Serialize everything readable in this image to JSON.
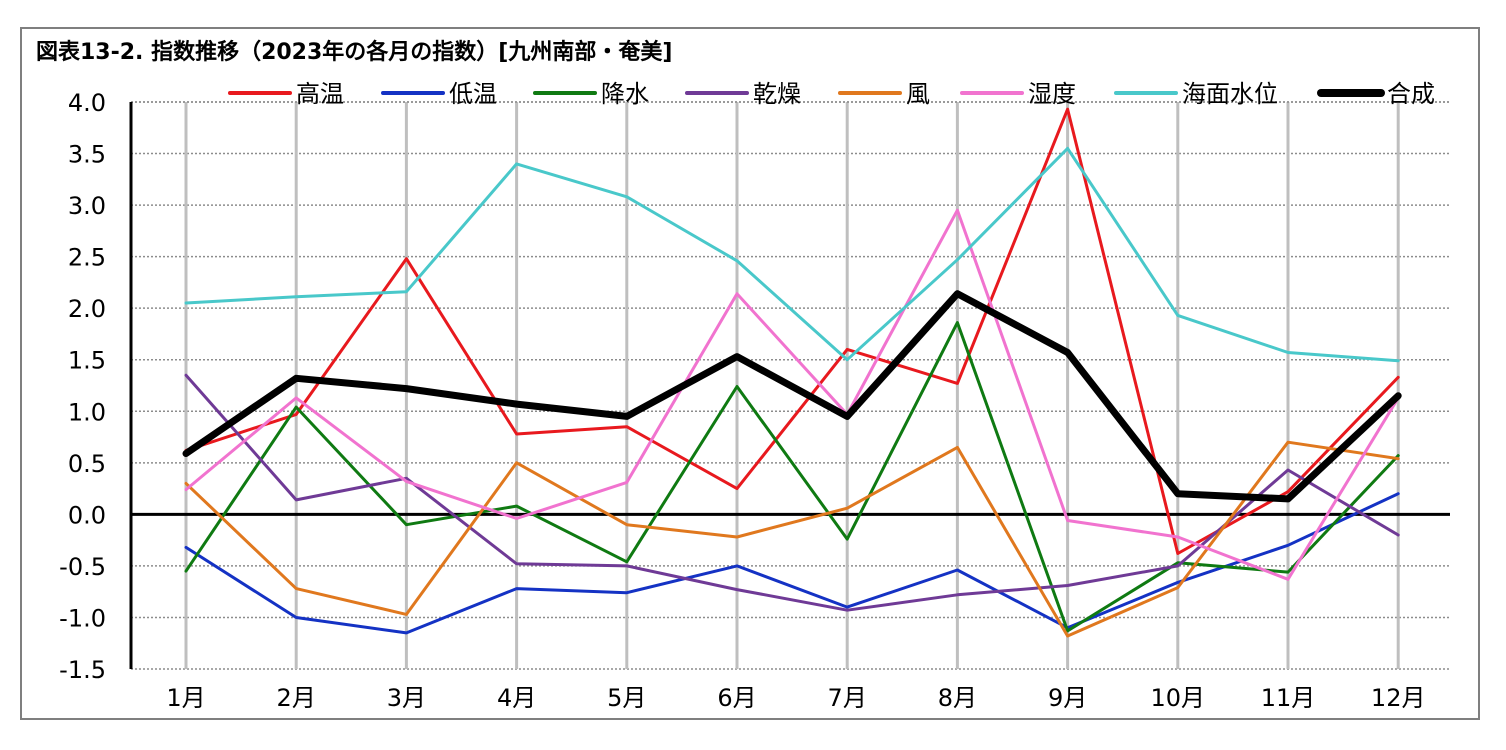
{
  "title": "図表13-2. 指数推移（2023年の各月の指数）[九州南部・奄美]",
  "chart_data": {
    "type": "line",
    "categories": [
      "1月",
      "2月",
      "3月",
      "4月",
      "5月",
      "6月",
      "7月",
      "8月",
      "9月",
      "10月",
      "11月",
      "12月"
    ],
    "ylim": [
      -1.5,
      4.0
    ],
    "y_ticks": [
      "4.0",
      "3.5",
      "3.0",
      "2.5",
      "2.0",
      "1.5",
      "1.0",
      "0.5",
      "0.0",
      "-0.5",
      "-1.0",
      "-1.5"
    ],
    "grid": true,
    "legend_position": "top",
    "series": [
      {
        "name": "高温",
        "color": "#e8191e",
        "width": 3,
        "values": [
          0.62,
          0.97,
          2.48,
          0.78,
          0.85,
          0.25,
          1.6,
          1.27,
          3.93,
          -0.38,
          0.22,
          1.33
        ]
      },
      {
        "name": "低温",
        "color": "#1432c4",
        "width": 3,
        "values": [
          -0.32,
          -1.0,
          -1.15,
          -0.72,
          -0.76,
          -0.5,
          -0.9,
          -0.54,
          -1.1,
          -0.66,
          -0.3,
          0.2
        ]
      },
      {
        "name": "降水",
        "color": "#0f7a12",
        "width": 3,
        "values": [
          -0.55,
          1.04,
          -0.1,
          0.08,
          -0.46,
          1.24,
          -0.24,
          1.86,
          -1.13,
          -0.47,
          -0.56,
          0.57
        ]
      },
      {
        "name": "乾燥",
        "color": "#6f3a96",
        "width": 3,
        "values": [
          1.35,
          0.14,
          0.35,
          -0.48,
          -0.5,
          -0.73,
          -0.93,
          -0.78,
          -0.69,
          -0.5,
          0.43,
          -0.2
        ]
      },
      {
        "name": "風",
        "color": "#e0781e",
        "width": 3,
        "values": [
          0.3,
          -0.72,
          -0.97,
          0.5,
          -0.1,
          -0.22,
          0.06,
          0.65,
          -1.18,
          -0.71,
          0.7,
          0.54
        ]
      },
      {
        "name": "湿度",
        "color": "#f173cf",
        "width": 3,
        "values": [
          0.24,
          1.13,
          0.32,
          -0.04,
          0.31,
          2.14,
          0.97,
          2.95,
          -0.06,
          -0.22,
          -0.63,
          1.13
        ]
      },
      {
        "name": "海面水位",
        "color": "#49c8ca",
        "width": 3,
        "values": [
          2.05,
          2.11,
          2.16,
          3.4,
          3.08,
          2.46,
          1.5,
          2.47,
          3.55,
          1.93,
          1.57,
          1.49
        ]
      },
      {
        "name": "合成",
        "color": "#000000",
        "width": 7,
        "values": [
          0.59,
          1.32,
          1.22,
          1.07,
          0.95,
          1.53,
          0.95,
          2.14,
          1.57,
          0.2,
          0.15,
          1.15
        ]
      }
    ]
  }
}
